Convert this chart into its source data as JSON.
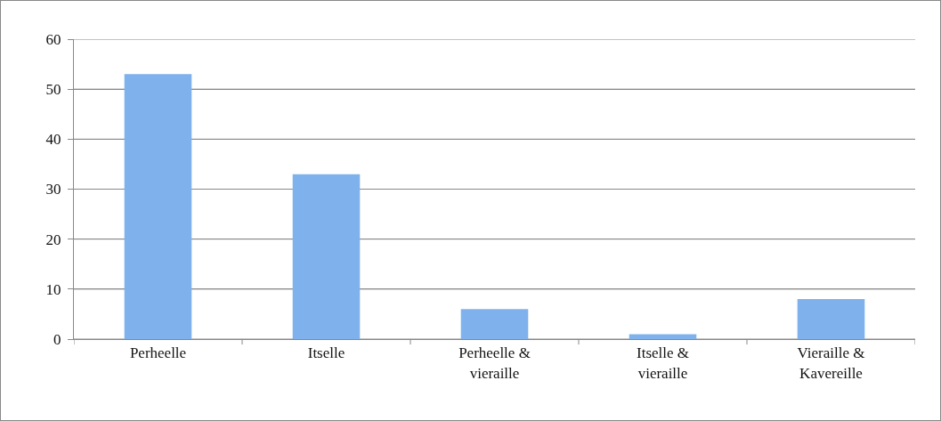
{
  "chart_data": {
    "type": "bar",
    "categories": [
      "Perheelle",
      "Itselle",
      "Perheelle & vieraille",
      "Itselle & vieraille",
      "Vieraille & Kavereille"
    ],
    "values": [
      53,
      33,
      6,
      1,
      8
    ],
    "color": "#7fb2ec",
    "ylim": [
      0,
      60
    ],
    "yticks": [
      0,
      10,
      20,
      30,
      40,
      50,
      60
    ],
    "grid": "y",
    "legend": false
  }
}
